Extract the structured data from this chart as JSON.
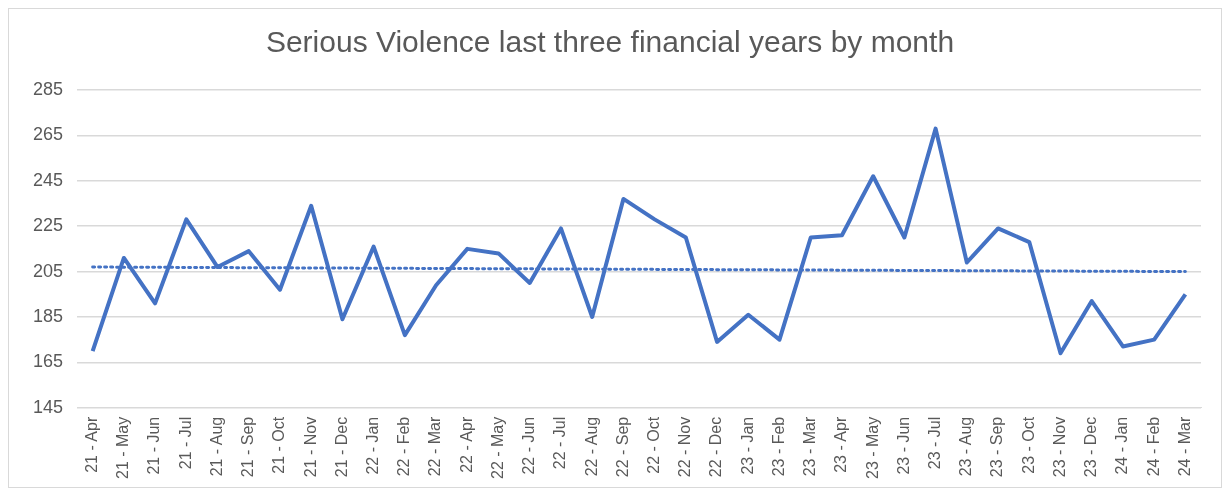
{
  "chart_data": {
    "type": "line",
    "title": "Serious Violence last three financial years by month",
    "categories": [
      "21 - Apr",
      "21 - May",
      "21 - Jun",
      "21 - Jul",
      "21 - Aug",
      "21 - Sep",
      "21 - Oct",
      "21 - Nov",
      "21 - Dec",
      "22 - Jan",
      "22 - Feb",
      "22 - Mar",
      "22 - Apr",
      "22 - May",
      "22 - Jun",
      "22 - Jul",
      "22 - Aug",
      "22 - Sep",
      "22 - Oct",
      "22 - Nov",
      "22 - Dec",
      "23 - Jan",
      "23 - Feb",
      "23 - Mar",
      "23 - Apr",
      "23 - May",
      "23 - Jun",
      "23 - Jul",
      "23 - Aug",
      "23 - Sep",
      "23 - Oct",
      "23 - Nov",
      "23 - Dec",
      "24 - Jan",
      "24 - Feb",
      "24 - Mar"
    ],
    "series": [
      {
        "color": "#4472c4",
        "line_style": "solid",
        "values": [
          170,
          211,
          191,
          228,
          207,
          214,
          197,
          234,
          184,
          216,
          177,
          199,
          215,
          213,
          200,
          224,
          185,
          237,
          228,
          220,
          174,
          186,
          175,
          220,
          221,
          247,
          220,
          268,
          209,
          224,
          218,
          169,
          192,
          172,
          175,
          195
        ]
      },
      {
        "type": "line",
        "color": "#4472c4",
        "line_style": "dotted",
        "values": [
          207,
          null,
          null,
          null,
          null,
          null,
          null,
          null,
          null,
          null,
          null,
          null,
          null,
          null,
          null,
          null,
          null,
          null,
          null,
          null,
          null,
          null,
          null,
          null,
          null,
          null,
          null,
          null,
          null,
          null,
          null,
          null,
          null,
          null,
          null,
          205
        ]
      }
    ],
    "ylim": [
      145,
      285
    ],
    "yticks": [
      145,
      165,
      185,
      205,
      225,
      245,
      265,
      285
    ],
    "grid": "y",
    "legend": false,
    "marker": "none"
  }
}
